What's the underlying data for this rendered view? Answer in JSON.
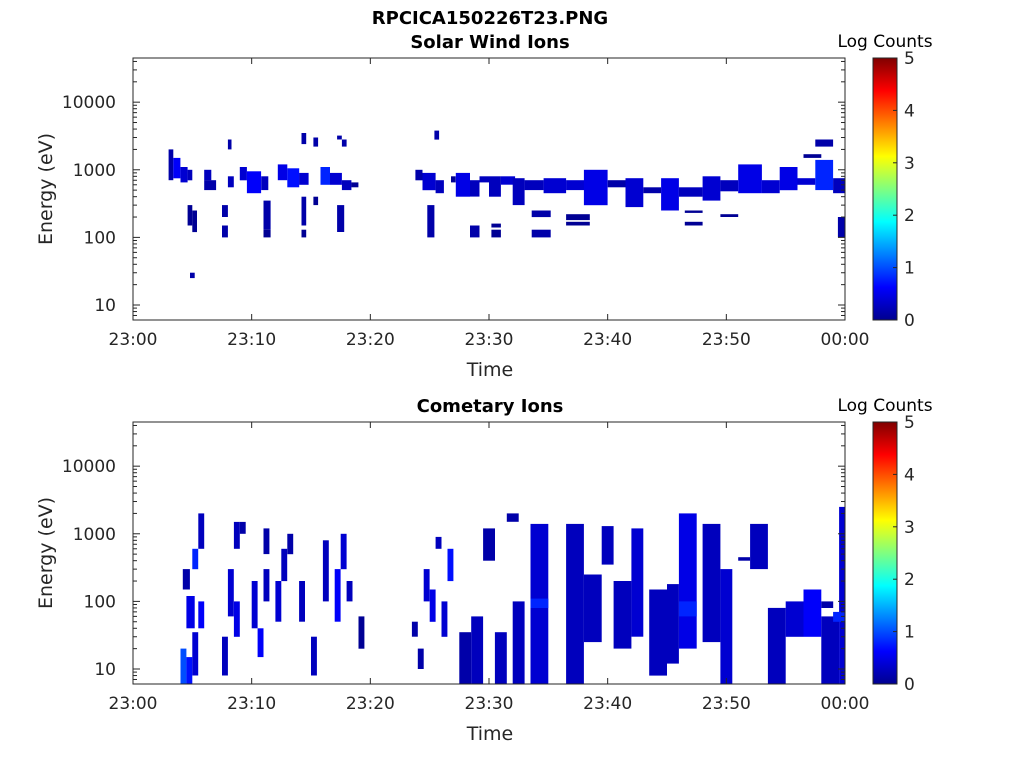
{
  "figure_title": "RPCICA150226T23.PNG",
  "colors": {
    "colormap": [
      "#000080",
      "#0000ff",
      "#0080ff",
      "#00ffff",
      "#80ff80",
      "#ffff00",
      "#ff8000",
      "#ff0000",
      "#800000"
    ],
    "axis": "#262626"
  },
  "chart_data": [
    {
      "type": "heatmap",
      "title": "Solar Wind Ions",
      "xlabel": "Time",
      "ylabel": "Energy (eV)",
      "x_ticks": [
        "23:00",
        "23:10",
        "23:20",
        "23:30",
        "23:40",
        "23:50",
        "00:00"
      ],
      "x_range_minutes": [
        0,
        60
      ],
      "y_scale": "log",
      "y_range_eV": [
        6,
        45000
      ],
      "y_ticks": [
        "10",
        "100",
        "1000",
        "10000"
      ],
      "colorbar": {
        "label": "Log Counts",
        "range": [
          0,
          5
        ],
        "ticks": [
          "0",
          "1",
          "2",
          "3",
          "4",
          "5"
        ]
      },
      "cells": [
        [
          3.0,
          3.4,
          700,
          2000,
          0.2
        ],
        [
          3.4,
          4.0,
          750,
          1500,
          0.6
        ],
        [
          4.0,
          4.6,
          650,
          1100,
          0.4
        ],
        [
          4.6,
          5.0,
          700,
          1000,
          0.3
        ],
        [
          4.8,
          5.2,
          25,
          30,
          0.2
        ],
        [
          4.6,
          5.0,
          150,
          300,
          0.1
        ],
        [
          5.0,
          5.4,
          120,
          250,
          0.1
        ],
        [
          6.0,
          6.6,
          700,
          1000,
          0.3
        ],
        [
          6.0,
          7.0,
          500,
          700,
          0.2
        ],
        [
          7.5,
          8.0,
          200,
          300,
          0.2
        ],
        [
          7.5,
          8.0,
          100,
          150,
          0.2
        ],
        [
          8.0,
          8.5,
          550,
          800,
          0.3
        ],
        [
          8.0,
          8.3,
          2000,
          2800,
          0.2
        ],
        [
          9.0,
          9.6,
          700,
          1100,
          0.4
        ],
        [
          9.6,
          10.8,
          450,
          950,
          0.6
        ],
        [
          10.8,
          11.4,
          500,
          800,
          0.3
        ],
        [
          11.0,
          11.6,
          130,
          350,
          0.2
        ],
        [
          11.0,
          11.6,
          100,
          130,
          0.1
        ],
        [
          12.2,
          13.0,
          700,
          1200,
          0.5
        ],
        [
          13.0,
          14.0,
          550,
          1050,
          0.7
        ],
        [
          14.0,
          14.8,
          600,
          900,
          0.4
        ],
        [
          14.2,
          14.6,
          150,
          400,
          0.2
        ],
        [
          14.2,
          14.6,
          100,
          130,
          0.1
        ],
        [
          14.2,
          14.6,
          2400,
          3500,
          0.2
        ],
        [
          15.2,
          15.6,
          300,
          400,
          0.1
        ],
        [
          15.2,
          15.6,
          2200,
          3000,
          0.2
        ],
        [
          15.8,
          16.6,
          600,
          1100,
          0.8
        ],
        [
          16.6,
          17.6,
          600,
          900,
          0.4
        ],
        [
          17.6,
          18.4,
          500,
          700,
          0.3
        ],
        [
          17.2,
          17.8,
          120,
          300,
          0.2
        ],
        [
          17.2,
          17.6,
          2800,
          3200,
          0.2
        ],
        [
          17.6,
          18.0,
          2200,
          2800,
          0.2
        ],
        [
          18.4,
          19.0,
          550,
          650,
          0.1
        ],
        [
          23.8,
          24.4,
          700,
          1000,
          0.2
        ],
        [
          24.4,
          25.5,
          500,
          900,
          0.4
        ],
        [
          25.5,
          26.2,
          450,
          700,
          0.3
        ],
        [
          24.8,
          25.4,
          100,
          300,
          0.2
        ],
        [
          25.4,
          25.8,
          2800,
          3800,
          0.2
        ],
        [
          26.8,
          27.2,
          650,
          800,
          0.1
        ],
        [
          27.2,
          28.4,
          400,
          900,
          0.5
        ],
        [
          28.4,
          29.2,
          400,
          700,
          0.3
        ],
        [
          28.4,
          29.2,
          100,
          150,
          0.2
        ],
        [
          29.2,
          30.0,
          650,
          800,
          0.3
        ],
        [
          30.0,
          31.0,
          400,
          800,
          0.3
        ],
        [
          31.0,
          32.2,
          600,
          800,
          0.4
        ],
        [
          30.2,
          31.0,
          100,
          130,
          0.1
        ],
        [
          30.2,
          31.0,
          140,
          160,
          0.1
        ],
        [
          32.0,
          33.0,
          300,
          750,
          0.3
        ],
        [
          33.0,
          34.6,
          500,
          700,
          0.3
        ],
        [
          33.6,
          35.2,
          100,
          130,
          0.2
        ],
        [
          33.6,
          35.2,
          200,
          250,
          0.2
        ],
        [
          34.6,
          36.5,
          450,
          750,
          0.4
        ],
        [
          36.5,
          38.5,
          500,
          700,
          0.4
        ],
        [
          38.0,
          40.0,
          300,
          1000,
          0.5
        ],
        [
          36.5,
          38.5,
          180,
          220,
          0.1
        ],
        [
          36.5,
          38.5,
          150,
          170,
          0.1
        ],
        [
          40.0,
          41.5,
          550,
          700,
          0.2
        ],
        [
          41.5,
          43.0,
          280,
          750,
          0.4
        ],
        [
          43.0,
          44.5,
          450,
          550,
          0.2
        ],
        [
          44.5,
          46.0,
          250,
          750,
          0.5
        ],
        [
          46.0,
          48.0,
          400,
          550,
          0.3
        ],
        [
          46.5,
          48.0,
          230,
          250,
          0.1
        ],
        [
          46.5,
          48.0,
          150,
          170,
          0.1
        ],
        [
          48.0,
          49.5,
          350,
          800,
          0.4
        ],
        [
          49.5,
          51.0,
          480,
          700,
          0.3
        ],
        [
          49.5,
          51.0,
          200,
          220,
          0.1
        ],
        [
          51.0,
          53.0,
          450,
          1200,
          0.5
        ],
        [
          53.0,
          54.5,
          450,
          700,
          0.4
        ],
        [
          54.5,
          56.0,
          500,
          1100,
          0.5
        ],
        [
          56.0,
          57.5,
          600,
          750,
          0.4
        ],
        [
          57.5,
          59.0,
          500,
          1400,
          0.8
        ],
        [
          57.5,
          59.0,
          2200,
          2800,
          0.2
        ],
        [
          59.0,
          60.0,
          450,
          750,
          0.3
        ],
        [
          59.4,
          60.0,
          100,
          200,
          0.2
        ],
        [
          56.5,
          58.0,
          1500,
          1700,
          0.1
        ]
      ]
    },
    {
      "type": "heatmap",
      "title": "Cometary Ions",
      "xlabel": "Time",
      "ylabel": "Energy (eV)",
      "x_ticks": [
        "23:00",
        "23:10",
        "23:20",
        "23:30",
        "23:40",
        "23:50",
        "00:00"
      ],
      "x_range_minutes": [
        0,
        60
      ],
      "y_scale": "log",
      "y_range_eV": [
        6,
        45000
      ],
      "y_ticks": [
        "10",
        "100",
        "1000",
        "10000"
      ],
      "colorbar": {
        "label": "Log Counts",
        "range": [
          0,
          5
        ],
        "ticks": [
          "0",
          "1",
          "2",
          "3",
          "4",
          "5"
        ]
      },
      "cells": [
        [
          4.0,
          4.5,
          6,
          20,
          1.0
        ],
        [
          4.5,
          5.0,
          6,
          15,
          0.7
        ],
        [
          4.5,
          5.2,
          40,
          120,
          0.5
        ],
        [
          5.0,
          5.5,
          300,
          600,
          0.8
        ],
        [
          5.0,
          5.5,
          8,
          35,
          0.4
        ],
        [
          5.5,
          6.0,
          40,
          100,
          0.6
        ],
        [
          5.5,
          6.0,
          600,
          2000,
          0.3
        ],
        [
          4.2,
          4.8,
          150,
          300,
          0.2
        ],
        [
          7.5,
          8.0,
          8,
          30,
          0.3
        ],
        [
          8.0,
          8.5,
          60,
          300,
          0.4
        ],
        [
          8.5,
          9.0,
          30,
          100,
          0.5
        ],
        [
          8.5,
          9.0,
          600,
          1500,
          0.3
        ],
        [
          9.0,
          9.5,
          1000,
          1500,
          0.2
        ],
        [
          10.0,
          10.5,
          40,
          200,
          0.4
        ],
        [
          10.5,
          11.0,
          15,
          40,
          0.6
        ],
        [
          11.0,
          11.5,
          100,
          300,
          0.3
        ],
        [
          11.0,
          11.5,
          500,
          1200,
          0.2
        ],
        [
          12.0,
          12.5,
          50,
          200,
          0.4
        ],
        [
          12.5,
          13.0,
          200,
          600,
          0.3
        ],
        [
          13.0,
          13.5,
          500,
          1000,
          0.2
        ],
        [
          14.0,
          14.5,
          50,
          200,
          0.3
        ],
        [
          15.0,
          15.5,
          8,
          30,
          0.3
        ],
        [
          16.0,
          16.5,
          100,
          800,
          0.3
        ],
        [
          17.0,
          17.5,
          50,
          300,
          0.6
        ],
        [
          17.5,
          18.0,
          300,
          1000,
          0.4
        ],
        [
          18.0,
          18.5,
          100,
          200,
          0.3
        ],
        [
          19.0,
          19.5,
          20,
          60,
          0.1
        ],
        [
          23.5,
          24.0,
          30,
          50,
          0.2
        ],
        [
          24.0,
          24.5,
          10,
          20,
          0.2
        ],
        [
          24.5,
          25.0,
          100,
          300,
          0.4
        ],
        [
          25.0,
          25.5,
          50,
          150,
          0.5
        ],
        [
          25.5,
          26.0,
          600,
          900,
          0.3
        ],
        [
          26.0,
          26.5,
          30,
          100,
          0.4
        ],
        [
          26.5,
          27.0,
          200,
          600,
          0.7
        ],
        [
          27.5,
          28.5,
          6,
          35,
          0.2
        ],
        [
          28.5,
          29.5,
          6,
          60,
          0.3
        ],
        [
          29.5,
          30.5,
          400,
          1200,
          0.2
        ],
        [
          30.5,
          31.5,
          6,
          35,
          0.3
        ],
        [
          31.5,
          32.5,
          1500,
          2000,
          0.2
        ],
        [
          32.0,
          33.0,
          6,
          100,
          0.3
        ],
        [
          33.5,
          35.0,
          6,
          1400,
          0.4
        ],
        [
          33.5,
          35.0,
          80,
          110,
          0.8
        ],
        [
          36.5,
          38.0,
          6,
          1400,
          0.3
        ],
        [
          38.0,
          39.5,
          25,
          250,
          0.3
        ],
        [
          39.5,
          40.5,
          350,
          1300,
          0.3
        ],
        [
          40.5,
          42.0,
          20,
          200,
          0.3
        ],
        [
          42.0,
          43.0,
          30,
          1200,
          0.4
        ],
        [
          43.5,
          45.0,
          8,
          150,
          0.3
        ],
        [
          45.0,
          46.0,
          12,
          180,
          0.3
        ],
        [
          46.0,
          47.5,
          20,
          2000,
          0.5
        ],
        [
          46.0,
          47.5,
          60,
          100,
          0.8
        ],
        [
          48.0,
          49.5,
          25,
          1400,
          0.3
        ],
        [
          49.5,
          50.5,
          6,
          300,
          0.4
        ],
        [
          51.0,
          52.0,
          400,
          450,
          0.2
        ],
        [
          52.0,
          53.5,
          300,
          1400,
          0.3
        ],
        [
          53.5,
          55.0,
          6,
          80,
          0.3
        ],
        [
          55.0,
          56.5,
          30,
          100,
          0.4
        ],
        [
          56.5,
          58.0,
          30,
          150,
          0.6
        ],
        [
          58.0,
          59.5,
          6,
          60,
          0.3
        ],
        [
          59.5,
          60.0,
          6,
          2500,
          0.4
        ],
        [
          58.0,
          59.0,
          80,
          100,
          0.2
        ],
        [
          59.0,
          60.0,
          50,
          70,
          0.8
        ]
      ]
    }
  ]
}
